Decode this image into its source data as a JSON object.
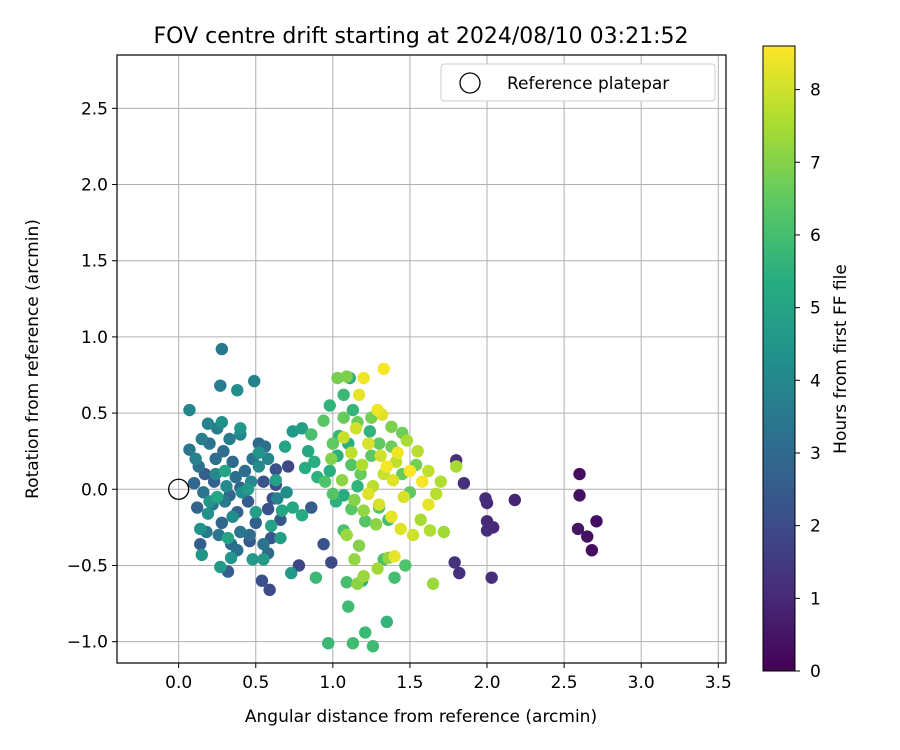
{
  "chart_data": {
    "type": "scatter",
    "title": "FOV centre drift starting at 2024/08/10 03:21:52",
    "xlabel": "Angular distance from reference (arcmin)",
    "ylabel": "Rotation from reference (arcmin)",
    "xlim": [
      -0.4,
      3.55
    ],
    "ylim": [
      -1.14,
      2.85
    ],
    "xticks": [
      "0.0",
      "0.5",
      "1.0",
      "1.5",
      "2.0",
      "2.5",
      "3.0",
      "3.5"
    ],
    "xtick_values": [
      0,
      0.5,
      1,
      1.5,
      2,
      2.5,
      3,
      3.5
    ],
    "yticks": [
      "−1.0",
      "−0.5",
      "0.0",
      "0.5",
      "1.0",
      "1.5",
      "2.0",
      "2.5"
    ],
    "ytick_values": [
      -1,
      -0.5,
      0,
      0.5,
      1,
      1.5,
      2,
      2.5
    ],
    "grid": true,
    "legend": {
      "label": "Reference platepar",
      "placement": "top-right"
    },
    "reference_point": {
      "x": 0.0,
      "y": 0.0
    },
    "colorbar": {
      "label": "Hours from first FF file",
      "min": 0,
      "max": 8.6,
      "ticks": [
        "0",
        "1",
        "2",
        "3",
        "4",
        "5",
        "6",
        "7",
        "8"
      ],
      "tick_values": [
        0,
        1,
        2,
        3,
        4,
        5,
        6,
        7,
        8
      ],
      "colormap": "viridis"
    },
    "points": [
      {
        "x": 2.6,
        "y": 0.1,
        "c": 0.3
      },
      {
        "x": 2.6,
        "y": -0.04,
        "c": 0.4
      },
      {
        "x": 2.71,
        "y": -0.21,
        "c": 0.3
      },
      {
        "x": 2.59,
        "y": -0.26,
        "c": 0.5
      },
      {
        "x": 2.65,
        "y": -0.31,
        "c": 0.4
      },
      {
        "x": 2.68,
        "y": -0.4,
        "c": 0.3
      },
      {
        "x": 2.18,
        "y": -0.07,
        "c": 0.9
      },
      {
        "x": 2.04,
        "y": -0.25,
        "c": 1.0
      },
      {
        "x": 2.0,
        "y": -0.21,
        "c": 1.0
      },
      {
        "x": 2.0,
        "y": -0.27,
        "c": 1.1
      },
      {
        "x": 1.99,
        "y": -0.06,
        "c": 1.1
      },
      {
        "x": 2.0,
        "y": -0.09,
        "c": 1.0
      },
      {
        "x": 1.8,
        "y": 0.19,
        "c": 1.2
      },
      {
        "x": 1.85,
        "y": 0.04,
        "c": 1.2
      },
      {
        "x": 1.79,
        "y": -0.48,
        "c": 1.3
      },
      {
        "x": 1.82,
        "y": -0.55,
        "c": 1.2
      },
      {
        "x": 2.03,
        "y": -0.58,
        "c": 1.1
      },
      {
        "x": 0.78,
        "y": -0.5,
        "c": 1.8
      },
      {
        "x": 0.59,
        "y": -0.66,
        "c": 2.0
      },
      {
        "x": 0.54,
        "y": -0.6,
        "c": 2.1
      },
      {
        "x": 0.71,
        "y": 0.15,
        "c": 1.9
      },
      {
        "x": 0.63,
        "y": 0.13,
        "c": 2.2
      },
      {
        "x": 0.55,
        "y": 0.05,
        "c": 2.3
      },
      {
        "x": 0.63,
        "y": 0.03,
        "c": 2.0
      },
      {
        "x": 0.61,
        "y": -0.06,
        "c": 2.1
      },
      {
        "x": 0.58,
        "y": -0.13,
        "c": 2.2
      },
      {
        "x": 0.66,
        "y": -0.2,
        "c": 2.4
      },
      {
        "x": 0.6,
        "y": -0.32,
        "c": 2.3
      },
      {
        "x": 0.46,
        "y": -0.34,
        "c": 2.4
      },
      {
        "x": 0.14,
        "y": -0.36,
        "c": 2.6
      },
      {
        "x": 0.17,
        "y": 0.1,
        "c": 2.6
      },
      {
        "x": 0.23,
        "y": 0.05,
        "c": 2.7
      },
      {
        "x": 0.33,
        "y": -0.04,
        "c": 2.8
      },
      {
        "x": 0.4,
        "y": 0.01,
        "c": 2.9
      },
      {
        "x": 0.45,
        "y": -0.08,
        "c": 2.5
      },
      {
        "x": 0.5,
        "y": -0.22,
        "c": 2.7
      },
      {
        "x": 0.38,
        "y": -0.15,
        "c": 2.8
      },
      {
        "x": 0.28,
        "y": -0.22,
        "c": 2.9
      },
      {
        "x": 0.12,
        "y": -0.12,
        "c": 2.8
      },
      {
        "x": 0.1,
        "y": 0.04,
        "c": 2.9
      },
      {
        "x": 0.32,
        "y": -0.54,
        "c": 2.6
      },
      {
        "x": 0.86,
        "y": -0.12,
        "c": 2.6
      },
      {
        "x": 0.94,
        "y": -0.36,
        "c": 2.2
      },
      {
        "x": 0.99,
        "y": -0.48,
        "c": 2.0
      },
      {
        "x": 0.35,
        "y": 0.18,
        "c": 3.0
      },
      {
        "x": 0.29,
        "y": 0.25,
        "c": 3.1
      },
      {
        "x": 0.24,
        "y": 0.2,
        "c": 3.2
      },
      {
        "x": 0.2,
        "y": 0.3,
        "c": 3.3
      },
      {
        "x": 0.13,
        "y": 0.15,
        "c": 3.2
      },
      {
        "x": 0.07,
        "y": 0.26,
        "c": 3.4
      },
      {
        "x": 0.16,
        "y": -0.02,
        "c": 3.3
      },
      {
        "x": 0.22,
        "y": -0.1,
        "c": 3.4
      },
      {
        "x": 0.3,
        "y": -0.08,
        "c": 3.5
      },
      {
        "x": 0.37,
        "y": 0.08,
        "c": 3.2
      },
      {
        "x": 0.43,
        "y": 0.12,
        "c": 3.1
      },
      {
        "x": 0.48,
        "y": 0.2,
        "c": 3.3
      },
      {
        "x": 0.52,
        "y": 0.3,
        "c": 3.0
      },
      {
        "x": 0.56,
        "y": 0.28,
        "c": 3.2
      },
      {
        "x": 0.4,
        "y": -0.28,
        "c": 3.3
      },
      {
        "x": 0.46,
        "y": -0.3,
        "c": 3.1
      },
      {
        "x": 0.34,
        "y": -0.36,
        "c": 3.0
      },
      {
        "x": 0.38,
        "y": -0.4,
        "c": 3.2
      },
      {
        "x": 0.26,
        "y": -0.3,
        "c": 3.4
      },
      {
        "x": 0.18,
        "y": -0.28,
        "c": 3.5
      },
      {
        "x": 0.55,
        "y": -0.36,
        "c": 3.3
      },
      {
        "x": 0.58,
        "y": -0.42,
        "c": 3.0
      },
      {
        "x": 0.27,
        "y": 0.68,
        "c": 3.6
      },
      {
        "x": 0.28,
        "y": 0.92,
        "c": 3.5
      },
      {
        "x": 0.49,
        "y": 0.71,
        "c": 3.8
      },
      {
        "x": 0.07,
        "y": 0.52,
        "c": 3.9
      },
      {
        "x": 0.25,
        "y": 0.4,
        "c": 3.7
      },
      {
        "x": 0.19,
        "y": 0.43,
        "c": 3.8
      },
      {
        "x": 0.33,
        "y": 0.33,
        "c": 3.6
      },
      {
        "x": 0.4,
        "y": 0.36,
        "c": 3.9
      },
      {
        "x": 0.15,
        "y": 0.33,
        "c": 3.7
      },
      {
        "x": 0.11,
        "y": 0.2,
        "c": 3.8
      },
      {
        "x": 0.24,
        "y": 0.1,
        "c": 4.0
      },
      {
        "x": 0.31,
        "y": 0.02,
        "c": 4.1
      },
      {
        "x": 0.41,
        "y": -0.02,
        "c": 4.2
      },
      {
        "x": 0.47,
        "y": 0.05,
        "c": 4.0
      },
      {
        "x": 0.52,
        "y": 0.15,
        "c": 4.1
      },
      {
        "x": 0.58,
        "y": 0.2,
        "c": 3.9
      },
      {
        "x": 0.64,
        "y": -0.06,
        "c": 3.8
      },
      {
        "x": 0.7,
        "y": -0.02,
        "c": 4.2
      },
      {
        "x": 0.35,
        "y": -0.18,
        "c": 4.1
      },
      {
        "x": 0.19,
        "y": -0.16,
        "c": 4.3
      },
      {
        "x": 0.14,
        "y": -0.26,
        "c": 4.4
      },
      {
        "x": 0.28,
        "y": 0.44,
        "c": 4.3
      },
      {
        "x": 0.38,
        "y": 0.65,
        "c": 4.2
      },
      {
        "x": 0.4,
        "y": 0.4,
        "c": 4.5
      },
      {
        "x": 0.52,
        "y": 0.24,
        "c": 4.4
      },
      {
        "x": 0.2,
        "y": -0.08,
        "c": 4.5
      },
      {
        "x": 0.34,
        "y": -0.45,
        "c": 4.4
      },
      {
        "x": 0.27,
        "y": -0.51,
        "c": 4.6
      },
      {
        "x": 0.15,
        "y": -0.43,
        "c": 4.5
      },
      {
        "x": 0.48,
        "y": -0.46,
        "c": 4.6
      },
      {
        "x": 0.55,
        "y": -0.46,
        "c": 4.7
      },
      {
        "x": 0.66,
        "y": -0.32,
        "c": 4.8
      },
      {
        "x": 0.73,
        "y": -0.55,
        "c": 4.6
      },
      {
        "x": 0.45,
        "y": 0.0,
        "c": 4.7
      },
      {
        "x": 0.5,
        "y": -0.15,
        "c": 4.8
      },
      {
        "x": 0.6,
        "y": -0.24,
        "c": 4.9
      },
      {
        "x": 0.74,
        "y": 0.38,
        "c": 4.6
      },
      {
        "x": 0.8,
        "y": 0.4,
        "c": 4.8
      },
      {
        "x": 0.63,
        "y": 0.06,
        "c": 4.9
      },
      {
        "x": 0.3,
        "y": 0.12,
        "c": 5.0
      },
      {
        "x": 0.25,
        "y": -0.05,
        "c": 5.1
      },
      {
        "x": 0.32,
        "y": -0.32,
        "c": 5.0
      },
      {
        "x": 0.67,
        "y": -0.14,
        "c": 5.1
      },
      {
        "x": 0.74,
        "y": -0.12,
        "c": 5.2
      },
      {
        "x": 0.8,
        "y": -0.17,
        "c": 5.3
      },
      {
        "x": 0.69,
        "y": 0.28,
        "c": 5.0
      },
      {
        "x": 0.84,
        "y": 0.25,
        "c": 5.2
      },
      {
        "x": 0.88,
        "y": 0.18,
        "c": 5.4
      },
      {
        "x": 0.82,
        "y": 0.14,
        "c": 5.3
      },
      {
        "x": 0.9,
        "y": 0.08,
        "c": 5.5
      },
      {
        "x": 0.98,
        "y": 0.12,
        "c": 5.4
      },
      {
        "x": 1.02,
        "y": -0.08,
        "c": 5.5
      },
      {
        "x": 1.07,
        "y": -0.04,
        "c": 5.3
      },
      {
        "x": 1.16,
        "y": 0.02,
        "c": 5.6
      },
      {
        "x": 1.03,
        "y": 0.22,
        "c": 5.5
      },
      {
        "x": 1.1,
        "y": 0.3,
        "c": 5.4
      },
      {
        "x": 1.04,
        "y": 0.35,
        "c": 5.7
      },
      {
        "x": 0.98,
        "y": 0.55,
        "c": 5.6
      },
      {
        "x": 1.11,
        "y": 0.73,
        "c": 5.5
      },
      {
        "x": 1.07,
        "y": 0.62,
        "c": 5.8
      },
      {
        "x": 1.13,
        "y": 0.52,
        "c": 5.7
      },
      {
        "x": 1.24,
        "y": 0.38,
        "c": 5.6
      },
      {
        "x": 0.97,
        "y": -1.01,
        "c": 5.8
      },
      {
        "x": 1.13,
        "y": -1.01,
        "c": 5.9
      },
      {
        "x": 1.21,
        "y": -0.94,
        "c": 5.8
      },
      {
        "x": 1.26,
        "y": -1.03,
        "c": 5.9
      },
      {
        "x": 1.35,
        "y": -0.87,
        "c": 5.7
      },
      {
        "x": 1.1,
        "y": -0.77,
        "c": 5.9
      },
      {
        "x": 1.19,
        "y": -0.6,
        "c": 5.6
      },
      {
        "x": 0.89,
        "y": -0.58,
        "c": 5.8
      },
      {
        "x": 1.09,
        "y": -0.61,
        "c": 6.0
      },
      {
        "x": 1.33,
        "y": -0.46,
        "c": 6.1
      },
      {
        "x": 1.4,
        "y": -0.58,
        "c": 6.0
      },
      {
        "x": 1.47,
        "y": -0.5,
        "c": 6.2
      },
      {
        "x": 1.07,
        "y": -0.27,
        "c": 6.1
      },
      {
        "x": 1.21,
        "y": -0.21,
        "c": 6.3
      },
      {
        "x": 1.3,
        "y": -0.12,
        "c": 6.2
      },
      {
        "x": 1.36,
        "y": -0.2,
        "c": 6.0
      },
      {
        "x": 1.12,
        "y": -0.13,
        "c": 6.4
      },
      {
        "x": 1.0,
        "y": -0.03,
        "c": 6.3
      },
      {
        "x": 0.95,
        "y": 0.05,
        "c": 6.2
      },
      {
        "x": 0.86,
        "y": 0.36,
        "c": 6.1
      },
      {
        "x": 0.94,
        "y": 0.45,
        "c": 6.4
      },
      {
        "x": 1.0,
        "y": 0.3,
        "c": 6.5
      },
      {
        "x": 1.12,
        "y": 0.16,
        "c": 6.3
      },
      {
        "x": 1.18,
        "y": 0.1,
        "c": 6.6
      },
      {
        "x": 1.25,
        "y": 0.22,
        "c": 6.4
      },
      {
        "x": 1.3,
        "y": 0.3,
        "c": 6.5
      },
      {
        "x": 1.38,
        "y": 0.28,
        "c": 6.7
      },
      {
        "x": 1.45,
        "y": 0.1,
        "c": 6.6
      },
      {
        "x": 1.5,
        "y": -0.02,
        "c": 6.5
      },
      {
        "x": 1.54,
        "y": 0.16,
        "c": 6.8
      },
      {
        "x": 1.07,
        "y": 0.47,
        "c": 6.6
      },
      {
        "x": 1.16,
        "y": 0.44,
        "c": 6.7
      },
      {
        "x": 1.25,
        "y": 0.47,
        "c": 6.8
      },
      {
        "x": 1.38,
        "y": 0.41,
        "c": 6.9
      },
      {
        "x": 1.45,
        "y": 0.37,
        "c": 6.7
      },
      {
        "x": 1.03,
        "y": 0.73,
        "c": 6.8
      },
      {
        "x": 1.09,
        "y": 0.74,
        "c": 6.9
      },
      {
        "x": 0.99,
        "y": 0.2,
        "c": 7.0
      },
      {
        "x": 1.06,
        "y": 0.06,
        "c": 7.1
      },
      {
        "x": 1.14,
        "y": -0.07,
        "c": 7.0
      },
      {
        "x": 1.2,
        "y": -0.14,
        "c": 7.2
      },
      {
        "x": 1.28,
        "y": -0.23,
        "c": 7.1
      },
      {
        "x": 1.09,
        "y": -0.3,
        "c": 7.3
      },
      {
        "x": 1.17,
        "y": -0.37,
        "c": 7.0
      },
      {
        "x": 1.14,
        "y": -0.46,
        "c": 7.2
      },
      {
        "x": 1.2,
        "y": -0.57,
        "c": 7.3
      },
      {
        "x": 1.16,
        "y": -0.62,
        "c": 7.1
      },
      {
        "x": 1.29,
        "y": -0.52,
        "c": 7.4
      },
      {
        "x": 1.36,
        "y": -0.45,
        "c": 7.2
      },
      {
        "x": 1.65,
        "y": -0.62,
        "c": 7.3
      },
      {
        "x": 1.72,
        "y": -0.28,
        "c": 7.4
      },
      {
        "x": 1.8,
        "y": 0.15,
        "c": 7.5
      },
      {
        "x": 1.63,
        "y": -0.27,
        "c": 7.6
      },
      {
        "x": 1.57,
        "y": -0.2,
        "c": 7.5
      },
      {
        "x": 1.67,
        "y": -0.03,
        "c": 7.7
      },
      {
        "x": 1.7,
        "y": 0.05,
        "c": 7.6
      },
      {
        "x": 1.62,
        "y": 0.12,
        "c": 7.8
      },
      {
        "x": 1.55,
        "y": 0.25,
        "c": 7.7
      },
      {
        "x": 1.48,
        "y": 0.32,
        "c": 7.5
      },
      {
        "x": 1.41,
        "y": 0.18,
        "c": 7.8
      },
      {
        "x": 1.33,
        "y": 0.1,
        "c": 7.9
      },
      {
        "x": 1.26,
        "y": 0.02,
        "c": 7.7
      },
      {
        "x": 1.19,
        "y": 0.16,
        "c": 7.6
      },
      {
        "x": 1.12,
        "y": 0.24,
        "c": 7.8
      },
      {
        "x": 1.07,
        "y": 0.34,
        "c": 7.9
      },
      {
        "x": 1.15,
        "y": 0.4,
        "c": 8.0
      },
      {
        "x": 1.23,
        "y": 0.3,
        "c": 8.1
      },
      {
        "x": 1.31,
        "y": 0.22,
        "c": 8.0
      },
      {
        "x": 1.39,
        "y": 0.06,
        "c": 8.2
      },
      {
        "x": 1.46,
        "y": -0.05,
        "c": 8.1
      },
      {
        "x": 1.52,
        "y": -0.3,
        "c": 8.0
      },
      {
        "x": 1.44,
        "y": -0.26,
        "c": 8.2
      },
      {
        "x": 1.38,
        "y": -0.18,
        "c": 8.3
      },
      {
        "x": 1.3,
        "y": -0.1,
        "c": 8.1
      },
      {
        "x": 1.23,
        "y": -0.03,
        "c": 8.2
      },
      {
        "x": 1.17,
        "y": 0.62,
        "c": 8.3
      },
      {
        "x": 1.29,
        "y": 0.52,
        "c": 8.4
      },
      {
        "x": 1.32,
        "y": 0.49,
        "c": 8.2
      },
      {
        "x": 1.33,
        "y": 0.79,
        "c": 8.5
      },
      {
        "x": 1.2,
        "y": 0.73,
        "c": 8.4
      },
      {
        "x": 1.4,
        "y": -0.44,
        "c": 8.3
      },
      {
        "x": 1.35,
        "y": 0.15,
        "c": 8.5
      },
      {
        "x": 1.42,
        "y": 0.24,
        "c": 8.4
      },
      {
        "x": 1.5,
        "y": 0.12,
        "c": 8.6
      },
      {
        "x": 1.58,
        "y": 0.05,
        "c": 8.5
      },
      {
        "x": 1.62,
        "y": -0.1,
        "c": 8.3
      }
    ]
  }
}
